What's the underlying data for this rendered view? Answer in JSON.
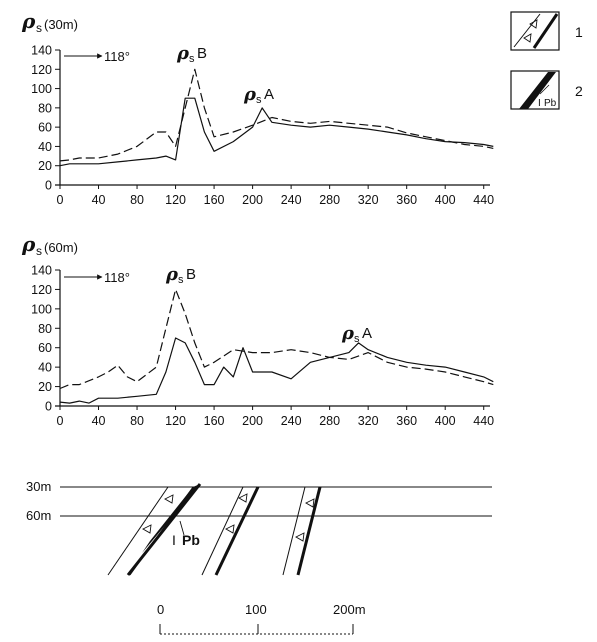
{
  "panel_30m": {
    "rho_symbol": "ρ",
    "subscript": "s",
    "depth_label": "(30m)",
    "y_ticks": [
      "0",
      "20",
      "40",
      "60",
      "80",
      "100",
      "120",
      "140"
    ],
    "x_ticks": [
      "0",
      "40",
      "80",
      "120",
      "160",
      "200",
      "240",
      "280",
      "320",
      "360",
      "400",
      "440"
    ],
    "direction_label": "118°",
    "anomaly_b": "B",
    "anomaly_a": "A"
  },
  "panel_60m": {
    "rho_symbol": "ρ",
    "subscript": "s",
    "depth_label": "(60m)",
    "y_ticks": [
      "0",
      "20",
      "40",
      "60",
      "80",
      "100",
      "120",
      "140"
    ],
    "x_ticks": [
      "0",
      "40",
      "80",
      "120",
      "160",
      "200",
      "240",
      "280",
      "320",
      "360",
      "400",
      "440"
    ],
    "direction_label": "118°",
    "anomaly_b": "B",
    "anomaly_a": "A"
  },
  "section": {
    "depth_30": "30m",
    "depth_60": "60m",
    "ore_label_roman": "I",
    "ore_label_pb": "Pb"
  },
  "scale": {
    "tick0": "0",
    "tick1": "100",
    "tick2": "200m"
  },
  "legend": {
    "item1_number": "1",
    "item2_number": "2",
    "item2_roman": "I",
    "item2_pb": "Pb"
  },
  "chart_data": [
    {
      "type": "line",
      "title": "ρs (30m)",
      "xlim": [
        0,
        450
      ],
      "ylim": [
        0,
        140
      ],
      "grid": false,
      "series": [
        {
          "style": "solid",
          "x": [
            0,
            10,
            20,
            40,
            60,
            80,
            100,
            110,
            120,
            130,
            140,
            150,
            160,
            180,
            200,
            210,
            220,
            240,
            260,
            280,
            300,
            320,
            340,
            360,
            380,
            400,
            420,
            440,
            450
          ],
          "y": [
            20,
            22,
            22,
            22,
            24,
            26,
            28,
            30,
            26,
            90,
            90,
            55,
            35,
            45,
            60,
            80,
            65,
            62,
            60,
            62,
            60,
            58,
            55,
            52,
            48,
            45,
            44,
            42,
            40
          ]
        },
        {
          "style": "dashed",
          "x": [
            0,
            10,
            20,
            40,
            60,
            80,
            100,
            110,
            120,
            130,
            140,
            150,
            160,
            180,
            200,
            220,
            240,
            260,
            280,
            300,
            320,
            340,
            360,
            380,
            400,
            420,
            440,
            450
          ],
          "y": [
            25,
            26,
            28,
            28,
            32,
            40,
            55,
            55,
            40,
            80,
            120,
            80,
            50,
            55,
            62,
            70,
            66,
            64,
            66,
            64,
            62,
            60,
            54,
            50,
            46,
            42,
            40,
            38
          ]
        }
      ]
    },
    {
      "type": "line",
      "title": "ρs (60m)",
      "xlim": [
        0,
        450
      ],
      "ylim": [
        0,
        140
      ],
      "grid": false,
      "series": [
        {
          "style": "solid",
          "x": [
            0,
            10,
            20,
            30,
            40,
            60,
            80,
            100,
            110,
            120,
            130,
            140,
            150,
            160,
            170,
            180,
            190,
            200,
            220,
            240,
            260,
            280,
            300,
            310,
            320,
            340,
            360,
            380,
            400,
            420,
            440,
            450
          ],
          "y": [
            4,
            3,
            5,
            3,
            8,
            8,
            10,
            12,
            35,
            70,
            65,
            45,
            22,
            22,
            40,
            30,
            60,
            35,
            35,
            28,
            45,
            50,
            55,
            65,
            58,
            50,
            45,
            42,
            40,
            35,
            30,
            25
          ]
        },
        {
          "style": "dashed",
          "x": [
            0,
            10,
            20,
            40,
            50,
            60,
            70,
            80,
            100,
            110,
            120,
            130,
            140,
            150,
            160,
            180,
            200,
            220,
            240,
            260,
            280,
            300,
            320,
            340,
            360,
            380,
            400,
            420,
            440,
            450
          ],
          "y": [
            18,
            22,
            22,
            30,
            35,
            42,
            30,
            25,
            40,
            80,
            120,
            95,
            65,
            40,
            45,
            58,
            55,
            55,
            58,
            55,
            50,
            48,
            55,
            45,
            40,
            38,
            35,
            30,
            25,
            22
          ]
        }
      ]
    }
  ]
}
